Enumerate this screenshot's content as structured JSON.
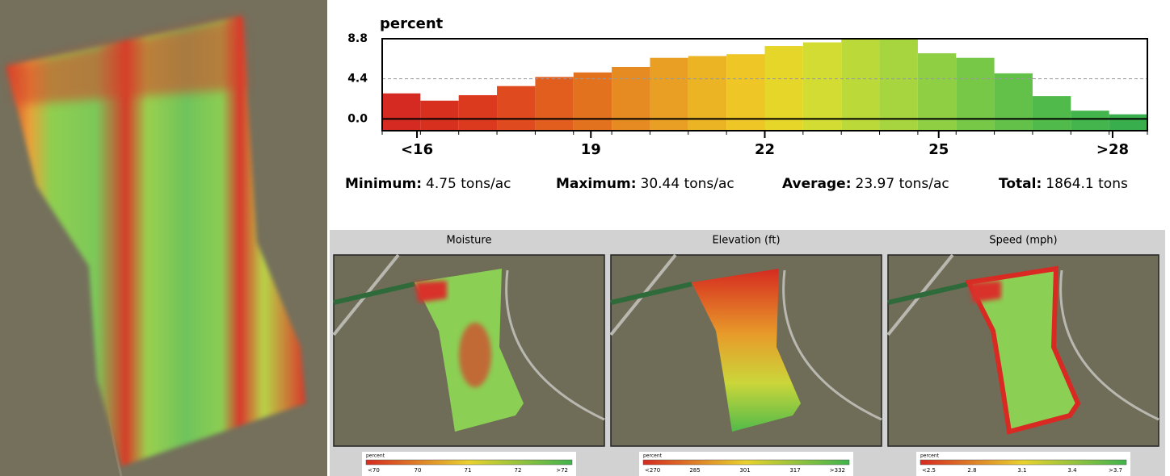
{
  "chart_data": {
    "type": "histogram",
    "title": "percent",
    "bins": [
      15.4,
      16.06,
      16.72,
      17.38,
      18.04,
      18.7,
      19.36,
      20.02,
      20.68,
      21.34,
      22.0,
      22.66,
      23.32,
      23.98,
      24.64,
      25.3,
      25.96,
      26.62,
      27.28,
      27.94,
      28.6
    ],
    "values": [
      2.8,
      2.0,
      2.6,
      3.6,
      4.6,
      5.1,
      5.7,
      6.7,
      6.9,
      7.1,
      8.0,
      8.4,
      8.8,
      8.8,
      7.2,
      6.7,
      5.0,
      2.5,
      0.9,
      0.5
    ],
    "colors": [
      "#d42a22",
      "#d7301f",
      "#db3a1e",
      "#df4a1e",
      "#e25e1f",
      "#e3721f",
      "#e68a22",
      "#e89f23",
      "#ebb424",
      "#eec726",
      "#e6d62a",
      "#d3dc33",
      "#bcd93a",
      "#a6d53f",
      "#8fcf44",
      "#78c847",
      "#63c14a",
      "#50bb4b",
      "#43b54c",
      "#38af4c"
    ],
    "xlim": [
      15.4,
      28.6
    ],
    "xticks": [
      {
        "value": 16,
        "label": "<16"
      },
      19,
      22,
      25,
      {
        "value": 28,
        "label": ">28"
      }
    ],
    "ylim": [
      -1.3,
      8.8
    ],
    "yticks": [
      8.8,
      4.4,
      {
        "value": 0,
        "label": "0.0"
      }
    ],
    "grid": true
  },
  "stats": [
    {
      "label": "Minimum:",
      "value": "4.75 tons/ac"
    },
    {
      "label": "Maximum:",
      "value": "30.44 tons/ac"
    },
    {
      "label": "Average:",
      "value": "23.97 tons/ac"
    },
    {
      "label": "Total:",
      "value": "1864.1 tons"
    }
  ],
  "panels": [
    {
      "title": "Moisture",
      "legend": {
        "title": "percent",
        "labels": [
          "<70",
          "70",
          "71",
          "72",
          ">72"
        ]
      }
    },
    {
      "title": "Elevation (ft)",
      "legend": {
        "title": "percent",
        "labels": [
          "<270",
          "285",
          "301",
          "317",
          ">332"
        ]
      }
    },
    {
      "title": "Speed (mph)",
      "legend": {
        "title": "percent",
        "labels": [
          "<2.5",
          "2.8",
          "3.1",
          "3.4",
          ">3.7"
        ]
      }
    }
  ]
}
